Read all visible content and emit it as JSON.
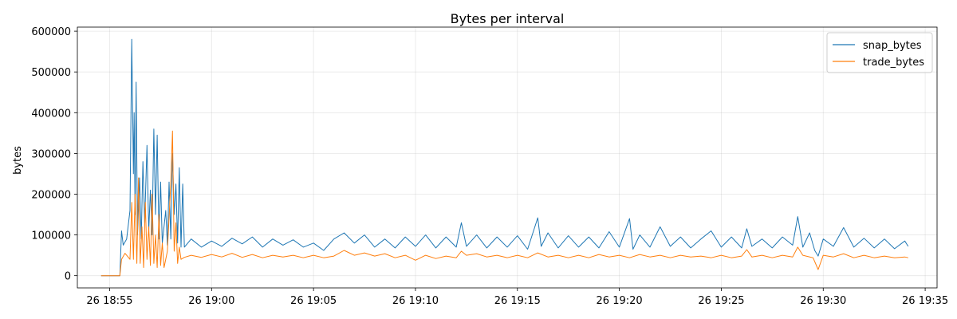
{
  "chart_data": {
    "type": "line",
    "title": "Bytes per interval",
    "xlabel": "",
    "ylabel": "bytes",
    "x_range": [
      "18:53:25",
      "19:35:35"
    ],
    "ylim": [
      -30000,
      610000
    ],
    "x_ticks": [
      {
        "t": "18:55",
        "label": "26 18:55"
      },
      {
        "t": "19:00",
        "label": "26 19:00"
      },
      {
        "t": "19:05",
        "label": "26 19:05"
      },
      {
        "t": "19:10",
        "label": "26 19:10"
      },
      {
        "t": "19:15",
        "label": "26 19:15"
      },
      {
        "t": "19:20",
        "label": "26 19:20"
      },
      {
        "t": "19:25",
        "label": "26 19:25"
      },
      {
        "t": "19:30",
        "label": "26 19:30"
      },
      {
        "t": "19:35",
        "label": "26 19:35"
      }
    ],
    "y_ticks": [
      {
        "value": 0,
        "label": "0"
      },
      {
        "value": 100000,
        "label": "100000"
      },
      {
        "value": 200000,
        "label": "200000"
      },
      {
        "value": 300000,
        "label": "300000"
      },
      {
        "value": 400000,
        "label": "400000"
      },
      {
        "value": 500000,
        "label": "500000"
      },
      {
        "value": 600000,
        "label": "600000"
      }
    ],
    "grid": true,
    "legend_position": "top-right",
    "series": [
      {
        "name": "snap_bytes",
        "color": "#1f77b4",
        "points": [
          [
            "18:54:35",
            0
          ],
          [
            "18:55:30",
            0
          ],
          [
            "18:55:35",
            110000
          ],
          [
            "18:55:40",
            75000
          ],
          [
            "18:55:50",
            90000
          ],
          [
            "18:56:00",
            160000
          ],
          [
            "18:56:05",
            580000
          ],
          [
            "18:56:10",
            250000
          ],
          [
            "18:56:12",
            400000
          ],
          [
            "18:56:15",
            150000
          ],
          [
            "18:56:18",
            475000
          ],
          [
            "18:56:22",
            100000
          ],
          [
            "18:56:28",
            240000
          ],
          [
            "18:56:33",
            90000
          ],
          [
            "18:56:38",
            280000
          ],
          [
            "18:56:43",
            130000
          ],
          [
            "18:56:50",
            320000
          ],
          [
            "18:56:55",
            110000
          ],
          [
            "18:57:00",
            210000
          ],
          [
            "18:57:05",
            100000
          ],
          [
            "18:57:10",
            360000
          ],
          [
            "18:57:15",
            150000
          ],
          [
            "18:57:20",
            345000
          ],
          [
            "18:57:25",
            90000
          ],
          [
            "18:57:30",
            230000
          ],
          [
            "18:57:35",
            80000
          ],
          [
            "18:57:45",
            160000
          ],
          [
            "18:57:50",
            75000
          ],
          [
            "18:57:55",
            230000
          ],
          [
            "18:58:00",
            90000
          ],
          [
            "18:58:05",
            300000
          ],
          [
            "18:58:10",
            150000
          ],
          [
            "18:58:15",
            225000
          ],
          [
            "18:58:20",
            80000
          ],
          [
            "18:58:25",
            265000
          ],
          [
            "18:58:30",
            70000
          ],
          [
            "18:58:35",
            225000
          ],
          [
            "18:58:40",
            70000
          ],
          [
            "18:59:00",
            90000
          ],
          [
            "18:59:30",
            70000
          ],
          [
            "19:00:00",
            85000
          ],
          [
            "19:00:30",
            72000
          ],
          [
            "19:01:00",
            92000
          ],
          [
            "19:01:30",
            78000
          ],
          [
            "19:02:00",
            95000
          ],
          [
            "19:02:30",
            70000
          ],
          [
            "19:03:00",
            90000
          ],
          [
            "19:03:30",
            75000
          ],
          [
            "19:04:00",
            88000
          ],
          [
            "19:04:30",
            70000
          ],
          [
            "19:05:00",
            80000
          ],
          [
            "19:05:30",
            62000
          ],
          [
            "19:06:00",
            90000
          ],
          [
            "19:06:30",
            105000
          ],
          [
            "19:07:00",
            80000
          ],
          [
            "19:07:30",
            100000
          ],
          [
            "19:08:00",
            70000
          ],
          [
            "19:08:30",
            90000
          ],
          [
            "19:09:00",
            68000
          ],
          [
            "19:09:30",
            95000
          ],
          [
            "19:10:00",
            72000
          ],
          [
            "19:10:30",
            100000
          ],
          [
            "19:11:00",
            68000
          ],
          [
            "19:11:30",
            95000
          ],
          [
            "19:12:00",
            70000
          ],
          [
            "19:12:15",
            130000
          ],
          [
            "19:12:30",
            72000
          ],
          [
            "19:13:00",
            100000
          ],
          [
            "19:13:30",
            68000
          ],
          [
            "19:14:00",
            95000
          ],
          [
            "19:14:30",
            70000
          ],
          [
            "19:15:00",
            98000
          ],
          [
            "19:15:30",
            65000
          ],
          [
            "19:16:00",
            142000
          ],
          [
            "19:16:10",
            72000
          ],
          [
            "19:16:30",
            105000
          ],
          [
            "19:17:00",
            68000
          ],
          [
            "19:17:30",
            98000
          ],
          [
            "19:18:00",
            70000
          ],
          [
            "19:18:30",
            95000
          ],
          [
            "19:19:00",
            68000
          ],
          [
            "19:19:30",
            108000
          ],
          [
            "19:20:00",
            70000
          ],
          [
            "19:20:30",
            140000
          ],
          [
            "19:20:40",
            65000
          ],
          [
            "19:21:00",
            100000
          ],
          [
            "19:21:30",
            70000
          ],
          [
            "19:22:00",
            120000
          ],
          [
            "19:22:30",
            72000
          ],
          [
            "19:23:00",
            95000
          ],
          [
            "19:23:30",
            68000
          ],
          [
            "19:24:00",
            90000
          ],
          [
            "19:24:30",
            110000
          ],
          [
            "19:25:00",
            70000
          ],
          [
            "19:25:30",
            95000
          ],
          [
            "19:26:00",
            68000
          ],
          [
            "19:26:15",
            115000
          ],
          [
            "19:26:30",
            72000
          ],
          [
            "19:27:00",
            90000
          ],
          [
            "19:27:30",
            68000
          ],
          [
            "19:28:00",
            95000
          ],
          [
            "19:28:30",
            75000
          ],
          [
            "19:28:45",
            145000
          ],
          [
            "19:29:00",
            70000
          ],
          [
            "19:29:20",
            105000
          ],
          [
            "19:29:35",
            62000
          ],
          [
            "19:29:45",
            48000
          ],
          [
            "19:30:00",
            90000
          ],
          [
            "19:30:30",
            72000
          ],
          [
            "19:31:00",
            118000
          ],
          [
            "19:31:30",
            70000
          ],
          [
            "19:32:00",
            92000
          ],
          [
            "19:32:30",
            68000
          ],
          [
            "19:33:00",
            90000
          ],
          [
            "19:33:30",
            66000
          ],
          [
            "19:34:00",
            85000
          ],
          [
            "19:34:10",
            72000
          ]
        ]
      },
      {
        "name": "trade_bytes",
        "color": "#ff7f0e",
        "points": [
          [
            "18:54:35",
            0
          ],
          [
            "18:55:30",
            0
          ],
          [
            "18:55:35",
            40000
          ],
          [
            "18:55:45",
            55000
          ],
          [
            "18:56:00",
            40000
          ],
          [
            "18:56:05",
            180000
          ],
          [
            "18:56:10",
            40000
          ],
          [
            "18:56:15",
            200000
          ],
          [
            "18:56:20",
            30000
          ],
          [
            "18:56:25",
            240000
          ],
          [
            "18:56:30",
            30000
          ],
          [
            "18:56:35",
            120000
          ],
          [
            "18:56:40",
            20000
          ],
          [
            "18:56:45",
            180000
          ],
          [
            "18:56:50",
            40000
          ],
          [
            "18:56:55",
            120000
          ],
          [
            "18:57:00",
            25000
          ],
          [
            "18:57:05",
            200000
          ],
          [
            "18:57:10",
            30000
          ],
          [
            "18:57:15",
            100000
          ],
          [
            "18:57:20",
            20000
          ],
          [
            "18:57:25",
            150000
          ],
          [
            "18:57:30",
            25000
          ],
          [
            "18:57:35",
            80000
          ],
          [
            "18:57:40",
            20000
          ],
          [
            "18:57:50",
            60000
          ],
          [
            "18:58:00",
            230000
          ],
          [
            "18:58:05",
            355000
          ],
          [
            "18:58:10",
            60000
          ],
          [
            "18:58:15",
            130000
          ],
          [
            "18:58:20",
            30000
          ],
          [
            "18:58:25",
            70000
          ],
          [
            "18:58:30",
            40000
          ],
          [
            "18:58:40",
            45000
          ],
          [
            "18:59:00",
            50000
          ],
          [
            "18:59:30",
            45000
          ],
          [
            "19:00:00",
            52000
          ],
          [
            "19:00:30",
            46000
          ],
          [
            "19:01:00",
            55000
          ],
          [
            "19:01:30",
            45000
          ],
          [
            "19:02:00",
            52000
          ],
          [
            "19:02:30",
            44000
          ],
          [
            "19:03:00",
            50000
          ],
          [
            "19:03:30",
            46000
          ],
          [
            "19:04:00",
            50000
          ],
          [
            "19:04:30",
            44000
          ],
          [
            "19:05:00",
            50000
          ],
          [
            "19:05:30",
            44000
          ],
          [
            "19:06:00",
            48000
          ],
          [
            "19:06:30",
            62000
          ],
          [
            "19:07:00",
            50000
          ],
          [
            "19:07:30",
            56000
          ],
          [
            "19:08:00",
            48000
          ],
          [
            "19:08:30",
            54000
          ],
          [
            "19:09:00",
            44000
          ],
          [
            "19:09:30",
            50000
          ],
          [
            "19:10:00",
            38000
          ],
          [
            "19:10:30",
            50000
          ],
          [
            "19:11:00",
            42000
          ],
          [
            "19:11:30",
            48000
          ],
          [
            "19:12:00",
            44000
          ],
          [
            "19:12:15",
            60000
          ],
          [
            "19:12:30",
            50000
          ],
          [
            "19:13:00",
            54000
          ],
          [
            "19:13:30",
            46000
          ],
          [
            "19:14:00",
            50000
          ],
          [
            "19:14:30",
            44000
          ],
          [
            "19:15:00",
            50000
          ],
          [
            "19:15:30",
            44000
          ],
          [
            "19:16:00",
            56000
          ],
          [
            "19:16:30",
            46000
          ],
          [
            "19:17:00",
            50000
          ],
          [
            "19:17:30",
            44000
          ],
          [
            "19:18:00",
            50000
          ],
          [
            "19:18:30",
            44000
          ],
          [
            "19:19:00",
            52000
          ],
          [
            "19:19:30",
            46000
          ],
          [
            "19:20:00",
            50000
          ],
          [
            "19:20:30",
            44000
          ],
          [
            "19:21:00",
            52000
          ],
          [
            "19:21:30",
            46000
          ],
          [
            "19:22:00",
            50000
          ],
          [
            "19:22:30",
            44000
          ],
          [
            "19:23:00",
            50000
          ],
          [
            "19:23:30",
            46000
          ],
          [
            "19:24:00",
            48000
          ],
          [
            "19:24:30",
            44000
          ],
          [
            "19:25:00",
            50000
          ],
          [
            "19:25:30",
            44000
          ],
          [
            "19:26:00",
            48000
          ],
          [
            "19:26:15",
            64000
          ],
          [
            "19:26:30",
            46000
          ],
          [
            "19:27:00",
            50000
          ],
          [
            "19:27:30",
            44000
          ],
          [
            "19:28:00",
            50000
          ],
          [
            "19:28:30",
            46000
          ],
          [
            "19:28:45",
            70000
          ],
          [
            "19:29:00",
            50000
          ],
          [
            "19:29:30",
            44000
          ],
          [
            "19:29:45",
            15000
          ],
          [
            "19:30:00",
            50000
          ],
          [
            "19:30:30",
            46000
          ],
          [
            "19:31:00",
            54000
          ],
          [
            "19:31:30",
            44000
          ],
          [
            "19:32:00",
            50000
          ],
          [
            "19:32:30",
            44000
          ],
          [
            "19:33:00",
            48000
          ],
          [
            "19:33:30",
            44000
          ],
          [
            "19:34:00",
            46000
          ],
          [
            "19:34:10",
            44000
          ]
        ]
      }
    ]
  }
}
